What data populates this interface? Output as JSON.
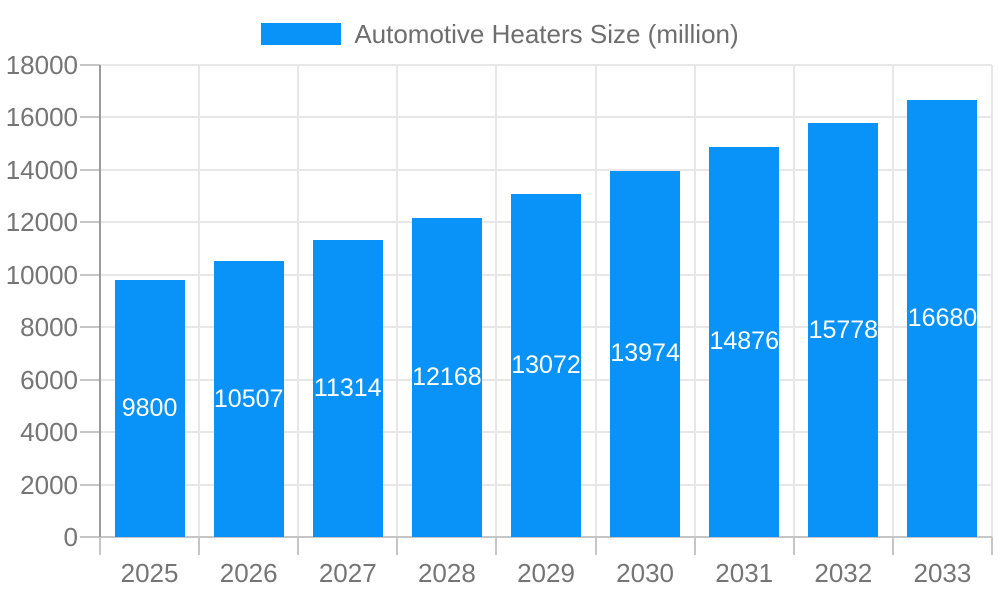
{
  "chart_data": {
    "type": "bar",
    "title": "Automotive Heaters Size (million)",
    "categories": [
      "2025",
      "2026",
      "2027",
      "2028",
      "2029",
      "2030",
      "2031",
      "2032",
      "2033"
    ],
    "series": [
      {
        "name": "Automotive Heaters Size (million)",
        "values": [
          9800,
          10507,
          11314,
          12168,
          13072,
          13974,
          14876,
          15778,
          16680
        ]
      }
    ],
    "bar_value_labels": [
      "9800",
      "10507",
      "11314",
      "12168",
      "13072",
      "13974",
      "14876",
      "15778",
      "16680"
    ],
    "ylabel": "",
    "xlabel": "",
    "ylim": [
      0,
      18000
    ],
    "ytick_step": 2000,
    "ytick_labels": [
      "0",
      "2000",
      "4000",
      "6000",
      "8000",
      "10000",
      "12000",
      "14000",
      "16000",
      "18000"
    ],
    "grid": true,
    "legend_position": "top",
    "colors": {
      "bar": "#0992f7",
      "grid": "#e7e7e7",
      "tick": "#c6c6c6",
      "x_axis": "#c6c6c6",
      "y_axis": "#9b9b9b",
      "axis_label": "#757575",
      "legend_text": "#6e6e6e",
      "bar_label": "#ffffff",
      "background": "#ffffff"
    }
  }
}
